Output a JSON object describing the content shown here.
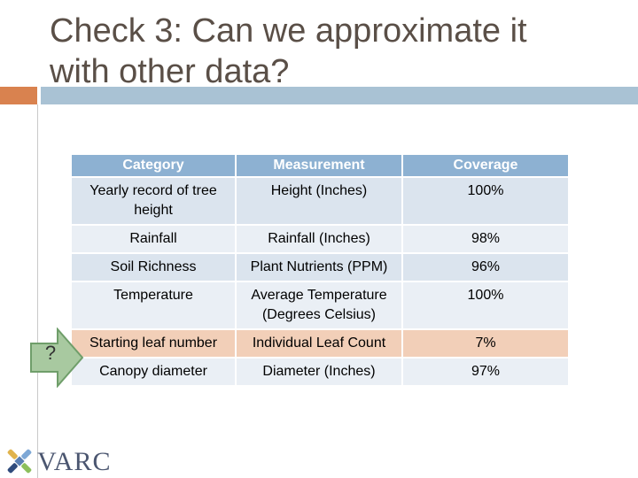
{
  "slide": {
    "title": "Check 3: Can we approximate it\nwith other data?"
  },
  "table": {
    "headers": [
      "Category",
      "Measurement",
      "Coverage"
    ],
    "rows": [
      {
        "category": "Yearly record of tree height",
        "measurement": "Height (Inches)",
        "coverage": "100%"
      },
      {
        "category": "Rainfall",
        "measurement": "Rainfall (Inches)",
        "coverage": "98%"
      },
      {
        "category": "Soil Richness",
        "measurement": "Plant Nutrients (PPM)",
        "coverage": "96%"
      },
      {
        "category": "Temperature",
        "measurement": "Average Temperature (Degrees Celsius)",
        "coverage": "100%"
      },
      {
        "category": "Starting leaf number",
        "measurement": "Individual Leaf Count",
        "coverage": "7%"
      },
      {
        "category": "Canopy diameter",
        "measurement": "Diameter (Inches)",
        "coverage": "97%"
      }
    ],
    "highlighted_row": 4
  },
  "callout": {
    "symbol": "?",
    "icon": "arrow-right-icon"
  },
  "logo": {
    "text": "VARC",
    "icon": "varc-logo-icon"
  },
  "colors": {
    "title": "#5a4f47",
    "accent_orange": "#d9824f",
    "accent_blue": "#a9c2d4",
    "header_bg": "#8db1d2",
    "row_bg": "#dbe4ee",
    "row_alt_bg": "#eaeff5",
    "highlight_bg": "#f2cfb8",
    "arrow_fill": "#a8c9a0"
  }
}
